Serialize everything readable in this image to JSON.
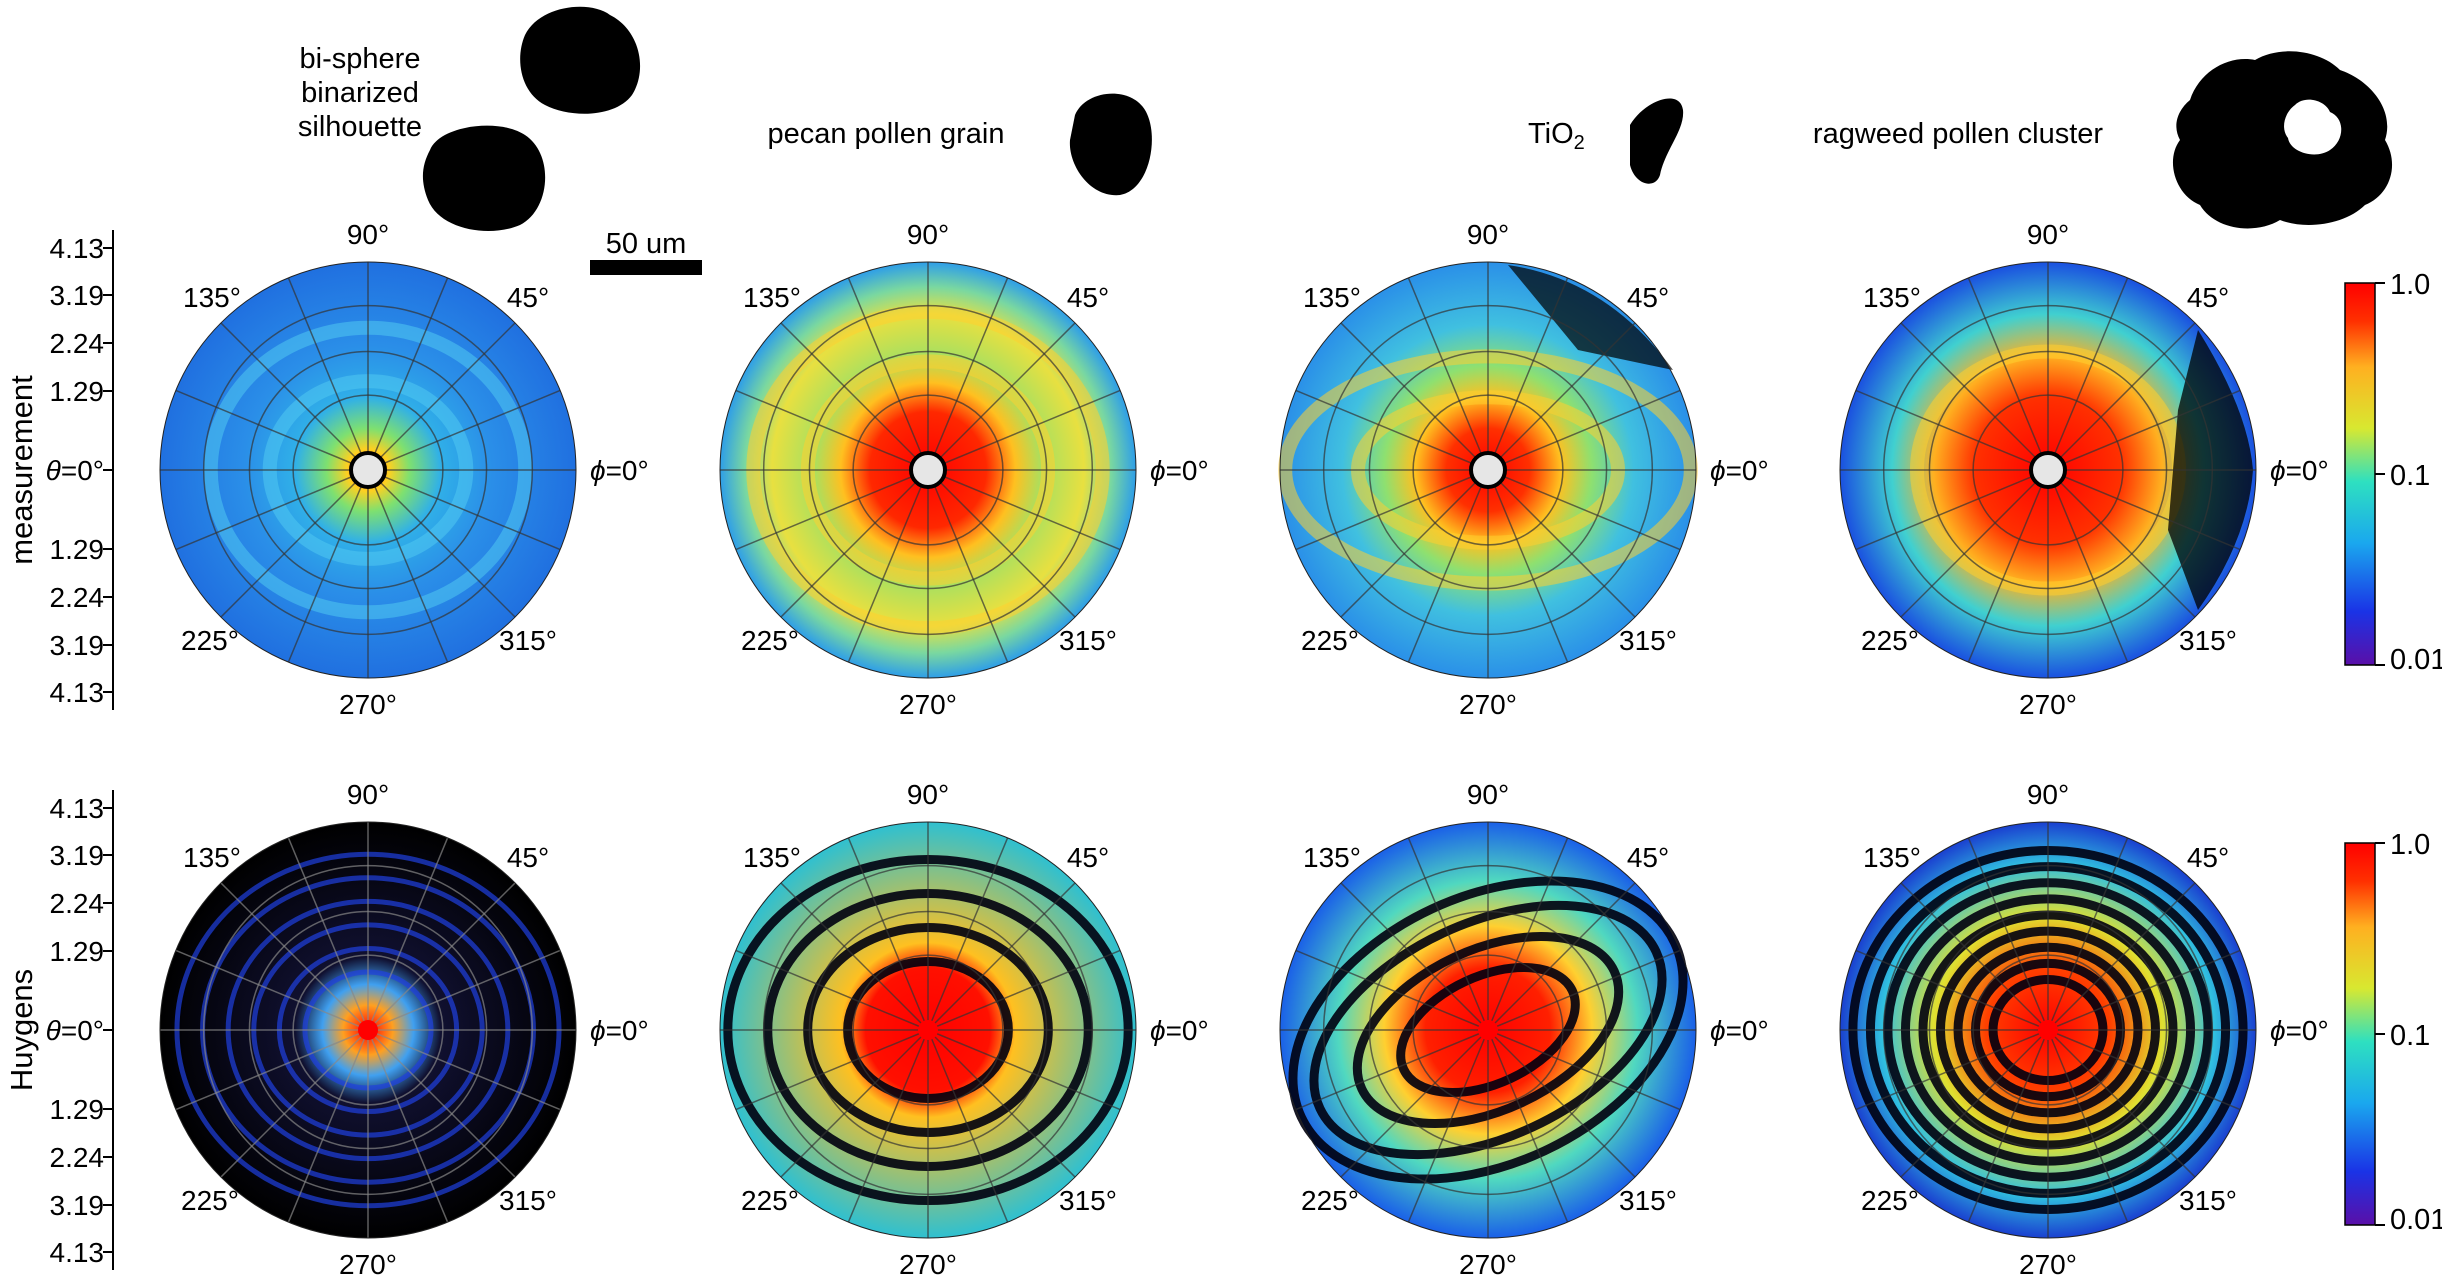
{
  "figure": {
    "row_labels": [
      "measurement",
      "Huygens"
    ],
    "theta_ticks": [
      "4.13",
      "3.19",
      "2.24",
      "1.29",
      "θ=0°",
      "1.29",
      "2.24",
      "3.19",
      "4.13"
    ],
    "phi_labels": {
      "deg90": "90°",
      "deg45": "45°",
      "deg135": "135°",
      "phi0": "=0°",
      "phi_symbol": "ϕ",
      "deg225": "225°",
      "deg270": "270°",
      "deg315": "315°"
    },
    "scale_bar": "50 um",
    "particles": [
      {
        "title_lines": [
          "bi-sphere",
          "binarized",
          "silhouette"
        ]
      },
      {
        "title_lines": [
          "pecan pollen grain"
        ]
      },
      {
        "title_lines": [
          "TiO",
          "2"
        ]
      },
      {
        "title_lines": [
          "ragweed pollen cluster"
        ]
      }
    ],
    "colorbar": {
      "ticks": [
        "1.0",
        "0.1",
        "0.01"
      ],
      "scale": "log",
      "colors": [
        "#5a0fa8",
        "#1a33e6",
        "#1aa8ee",
        "#2ee0c0",
        "#d8e830",
        "#ffb020",
        "#ff3000",
        "#ff0000"
      ]
    }
  },
  "chart_data": {
    "type": "heatmap",
    "layout": "2 rows x 4 columns of polar intensity maps",
    "rows": [
      "measurement",
      "Huygens"
    ],
    "columns": [
      "bi-sphere binarized silhouette",
      "pecan pollen grain",
      "TiO2",
      "ragweed pollen cluster"
    ],
    "radial_axis_ticks": [
      0,
      1.29,
      2.24,
      3.19,
      4.13
    ],
    "azimuth_ticks_deg": [
      0,
      45,
      90,
      135,
      225,
      270,
      315
    ],
    "color_scale": {
      "type": "log",
      "min": 0.01,
      "max": 1.0,
      "ticks": [
        1.0,
        0.1,
        0.01
      ]
    }
  }
}
